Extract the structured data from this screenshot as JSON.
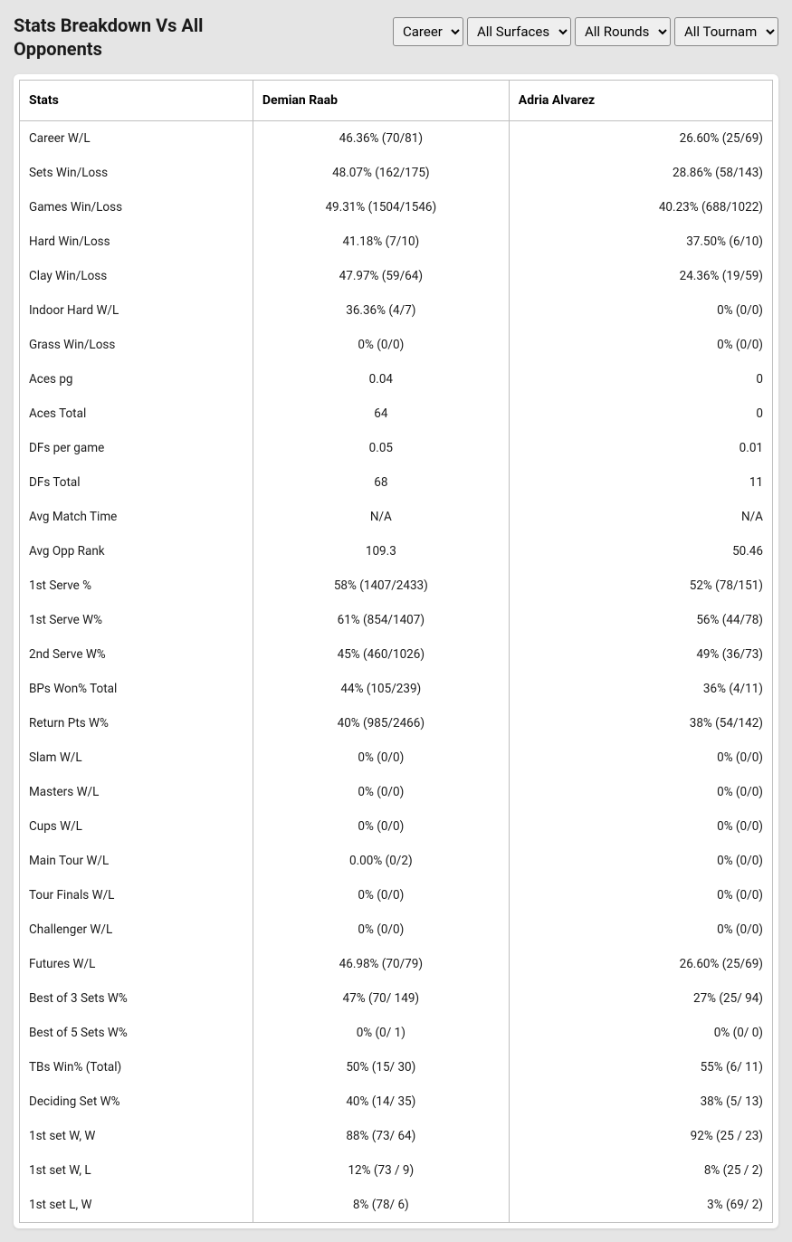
{
  "title": "Stats Breakdown Vs All Opponents",
  "filters": {
    "period": {
      "selected": "Career",
      "options": [
        "Career"
      ]
    },
    "surface": {
      "selected": "All Surfaces",
      "options": [
        "All Surfaces"
      ]
    },
    "round": {
      "selected": "All Rounds",
      "options": [
        "All Rounds"
      ]
    },
    "tournament": {
      "selected": "All Tournaments",
      "options": [
        "All Tournaments"
      ]
    }
  },
  "columns": {
    "stat": "Stats",
    "player1": "Demian Raab",
    "player2": "Adria Alvarez"
  },
  "rows": [
    {
      "stat": "Career W/L",
      "p1": "46.36% (70/81)",
      "p2": "26.60% (25/69)"
    },
    {
      "stat": "Sets Win/Loss",
      "p1": "48.07% (162/175)",
      "p2": "28.86% (58/143)"
    },
    {
      "stat": "Games Win/Loss",
      "p1": "49.31% (1504/1546)",
      "p2": "40.23% (688/1022)"
    },
    {
      "stat": "Hard Win/Loss",
      "p1": "41.18% (7/10)",
      "p2": "37.50% (6/10)"
    },
    {
      "stat": "Clay Win/Loss",
      "p1": "47.97% (59/64)",
      "p2": "24.36% (19/59)"
    },
    {
      "stat": "Indoor Hard W/L",
      "p1": "36.36% (4/7)",
      "p2": "0% (0/0)"
    },
    {
      "stat": "Grass Win/Loss",
      "p1": "0% (0/0)",
      "p2": "0% (0/0)"
    },
    {
      "stat": "Aces pg",
      "p1": "0.04",
      "p2": "0"
    },
    {
      "stat": "Aces Total",
      "p1": "64",
      "p2": "0"
    },
    {
      "stat": "DFs per game",
      "p1": "0.05",
      "p2": "0.01"
    },
    {
      "stat": "DFs Total",
      "p1": "68",
      "p2": "11"
    },
    {
      "stat": "Avg Match Time",
      "p1": "N/A",
      "p2": "N/A"
    },
    {
      "stat": "Avg Opp Rank",
      "p1": "109.3",
      "p2": "50.46"
    },
    {
      "stat": "1st Serve %",
      "p1": "58% (1407/2433)",
      "p2": "52% (78/151)"
    },
    {
      "stat": "1st Serve W%",
      "p1": "61% (854/1407)",
      "p2": "56% (44/78)"
    },
    {
      "stat": "2nd Serve W%",
      "p1": "45% (460/1026)",
      "p2": "49% (36/73)"
    },
    {
      "stat": "BPs Won% Total",
      "p1": "44% (105/239)",
      "p2": "36% (4/11)"
    },
    {
      "stat": "Return Pts W%",
      "p1": "40% (985/2466)",
      "p2": "38% (54/142)"
    },
    {
      "stat": "Slam W/L",
      "p1": "0% (0/0)",
      "p2": "0% (0/0)"
    },
    {
      "stat": "Masters W/L",
      "p1": "0% (0/0)",
      "p2": "0% (0/0)"
    },
    {
      "stat": "Cups W/L",
      "p1": "0% (0/0)",
      "p2": "0% (0/0)"
    },
    {
      "stat": "Main Tour W/L",
      "p1": "0.00% (0/2)",
      "p2": "0% (0/0)"
    },
    {
      "stat": "Tour Finals W/L",
      "p1": "0% (0/0)",
      "p2": "0% (0/0)"
    },
    {
      "stat": "Challenger W/L",
      "p1": "0% (0/0)",
      "p2": "0% (0/0)"
    },
    {
      "stat": "Futures W/L",
      "p1": "46.98% (70/79)",
      "p2": "26.60% (25/69)"
    },
    {
      "stat": "Best of 3 Sets W%",
      "p1": "47% (70/ 149)",
      "p2": "27% (25/ 94)"
    },
    {
      "stat": "Best of 5 Sets W%",
      "p1": "0% (0/ 1)",
      "p2": "0% (0/ 0)"
    },
    {
      "stat": "TBs Win% (Total)",
      "p1": "50% (15/ 30)",
      "p2": "55% (6/ 11)"
    },
    {
      "stat": "Deciding Set W%",
      "p1": "40% (14/ 35)",
      "p2": "38% (5/ 13)"
    },
    {
      "stat": "1st set W, W",
      "p1": "88% (73/ 64)",
      "p2": "92% (25 / 23)"
    },
    {
      "stat": "1st set W, L",
      "p1": "12% (73 / 9)",
      "p2": "8% (25 / 2)"
    },
    {
      "stat": "1st set L, W",
      "p1": "8% (78/ 6)",
      "p2": "3% (69/ 2)"
    }
  ]
}
